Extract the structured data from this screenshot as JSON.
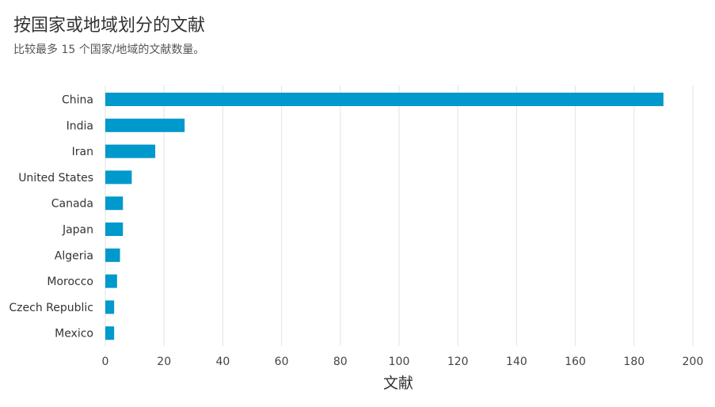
{
  "header": {
    "title": "按国家或地域划分的文献",
    "subtitle": "比较最多 15 个国家/地域的文献数量。"
  },
  "colors": {
    "bar": "#0099cc",
    "grid": "#e3e3e3"
  },
  "chart_data": {
    "type": "bar",
    "orientation": "horizontal",
    "title": "按国家或地域划分的文献",
    "subtitle": "比较最多 15 个国家/地域的文献数量。",
    "xlabel": "文献",
    "ylabel": "",
    "categories": [
      "China",
      "India",
      "Iran",
      "United States",
      "Canada",
      "Japan",
      "Algeria",
      "Morocco",
      "Czech Republic",
      "Mexico"
    ],
    "values": [
      190,
      27,
      17,
      9,
      6,
      6,
      5,
      4,
      3,
      3
    ],
    "xlim": [
      0,
      200
    ],
    "xticks": [
      0,
      20,
      40,
      60,
      80,
      100,
      120,
      140,
      160,
      180,
      200
    ],
    "grid": "vertical",
    "legend": "none"
  }
}
